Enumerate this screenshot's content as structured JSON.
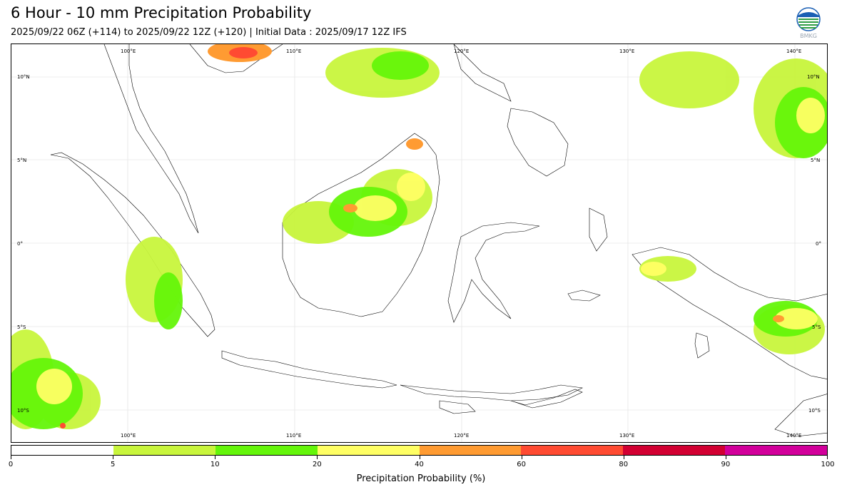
{
  "header": {
    "title": "6 Hour - 10 mm Precipitation Probability",
    "subtitle": "2025/09/22 06Z (+114) to 2025/09/22 12Z (+120) | Initial Data : 2025/09/17 12Z IFS",
    "logo_text": "BMKG"
  },
  "map": {
    "region": "Indonesia",
    "lon_labels": [
      "100°E",
      "110°E",
      "120°E",
      "130°E",
      "140°E"
    ],
    "lat_labels": [
      "10°N",
      "5°N",
      "0°",
      "5°S",
      "10°S"
    ]
  },
  "colorbar": {
    "title": "Precipitation Probability (%)",
    "tick_labels": [
      "0",
      "5",
      "10",
      "20",
      "40",
      "60",
      "80",
      "90",
      "100"
    ],
    "colors": [
      "#ffffff",
      "#c8f53c",
      "#64f50a",
      "#ffff64",
      "#ff9b32",
      "#ff4b32",
      "#d20032",
      "#d2009b"
    ]
  }
}
